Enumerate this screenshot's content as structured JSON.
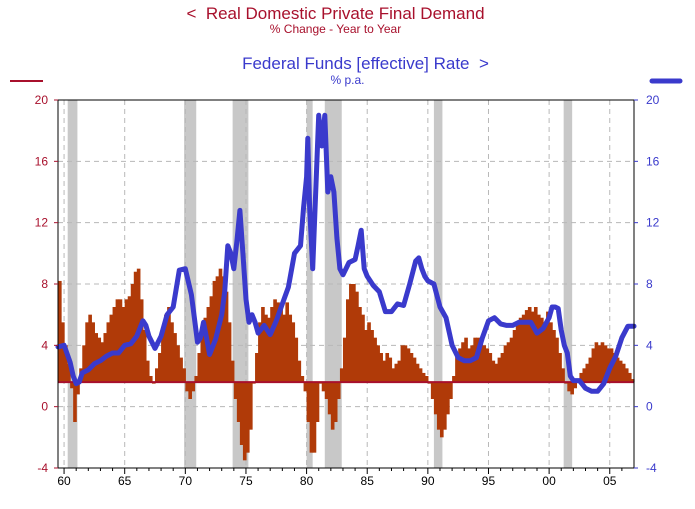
{
  "chart_data": {
    "type": "bar+line",
    "title_left": "<  Real Domestic Private Final Demand",
    "subtitle_left": "% Change - Year to Year",
    "title_right": "Federal Funds [effective] Rate  >",
    "subtitle_right": "% p.a.",
    "colors": {
      "bars": "#b03a08",
      "line": "#3a3acc",
      "left_axis": "#a8102c",
      "right_axis": "#3a3acc",
      "baseline": "#a8102c",
      "recession": "#c8c8c8"
    },
    "ylim_left": [
      -4,
      20
    ],
    "ylim_right": [
      -4,
      20
    ],
    "y_ticks_left": [
      "20",
      "16",
      "12",
      "8",
      "4",
      "0",
      "-4"
    ],
    "y_ticks_right": [
      "20",
      "16",
      "12",
      "8",
      "4",
      "0",
      "-4"
    ],
    "x_ticks": [
      "60",
      "65",
      "70",
      "75",
      "80",
      "85",
      "90",
      "95",
      "00",
      "05"
    ],
    "xlim": [
      1959.5,
      2007.0
    ],
    "bar_baseline": 1.6,
    "recessions": [
      [
        1960.3,
        1961.1
      ],
      [
        1969.9,
        1970.9
      ],
      [
        1973.9,
        1975.2
      ],
      [
        1980.0,
        1980.5
      ],
      [
        1981.5,
        1982.9
      ],
      [
        1990.5,
        1991.2
      ],
      [
        2001.2,
        2001.9
      ]
    ],
    "demand_yoy": [
      [
        1959.5,
        8.2
      ],
      [
        1959.75,
        5.5
      ],
      [
        1960.0,
        4.0
      ],
      [
        1960.25,
        2.8
      ],
      [
        1960.5,
        1.2
      ],
      [
        1960.75,
        -1.0
      ],
      [
        1961.0,
        0.8
      ],
      [
        1961.25,
        2.5
      ],
      [
        1961.5,
        4.0
      ],
      [
        1961.75,
        5.5
      ],
      [
        1962.0,
        6.0
      ],
      [
        1962.25,
        5.5
      ],
      [
        1962.5,
        4.8
      ],
      [
        1962.75,
        4.5
      ],
      [
        1963.0,
        4.2
      ],
      [
        1963.25,
        4.8
      ],
      [
        1963.5,
        5.5
      ],
      [
        1963.75,
        6.0
      ],
      [
        1964.0,
        6.5
      ],
      [
        1964.25,
        7.0
      ],
      [
        1964.5,
        7.0
      ],
      [
        1964.75,
        6.5
      ],
      [
        1965.0,
        7.0
      ],
      [
        1965.25,
        7.2
      ],
      [
        1965.5,
        8.0
      ],
      [
        1965.75,
        8.8
      ],
      [
        1966.0,
        9.0
      ],
      [
        1966.25,
        7.0
      ],
      [
        1966.5,
        5.0
      ],
      [
        1966.75,
        3.0
      ],
      [
        1967.0,
        2.0
      ],
      [
        1967.25,
        1.5
      ],
      [
        1967.5,
        2.5
      ],
      [
        1967.75,
        3.5
      ],
      [
        1968.0,
        5.0
      ],
      [
        1968.25,
        6.0
      ],
      [
        1968.5,
        6.5
      ],
      [
        1968.75,
        5.5
      ],
      [
        1969.0,
        4.8
      ],
      [
        1969.25,
        4.0
      ],
      [
        1969.5,
        3.2
      ],
      [
        1969.75,
        2.5
      ],
      [
        1970.0,
        1.0
      ],
      [
        1970.25,
        0.5
      ],
      [
        1970.5,
        1.0
      ],
      [
        1970.75,
        2.0
      ],
      [
        1971.0,
        3.5
      ],
      [
        1971.25,
        4.8
      ],
      [
        1971.5,
        5.8
      ],
      [
        1971.75,
        6.5
      ],
      [
        1972.0,
        7.2
      ],
      [
        1972.25,
        8.2
      ],
      [
        1972.5,
        8.5
      ],
      [
        1972.75,
        9.0
      ],
      [
        1973.0,
        8.5
      ],
      [
        1973.25,
        7.5
      ],
      [
        1973.5,
        5.5
      ],
      [
        1973.75,
        3.0
      ],
      [
        1974.0,
        0.5
      ],
      [
        1974.25,
        -1.0
      ],
      [
        1974.5,
        -2.5
      ],
      [
        1974.75,
        -3.5
      ],
      [
        1975.0,
        -3.0
      ],
      [
        1975.25,
        -1.5
      ],
      [
        1975.5,
        1.5
      ],
      [
        1975.75,
        3.5
      ],
      [
        1976.0,
        5.5
      ],
      [
        1976.25,
        6.5
      ],
      [
        1976.5,
        6.0
      ],
      [
        1976.75,
        5.8
      ],
      [
        1977.0,
        6.5
      ],
      [
        1977.25,
        7.0
      ],
      [
        1977.5,
        6.8
      ],
      [
        1977.75,
        6.5
      ],
      [
        1978.0,
        6.0
      ],
      [
        1978.25,
        6.8
      ],
      [
        1978.5,
        6.0
      ],
      [
        1978.75,
        5.5
      ],
      [
        1979.0,
        4.5
      ],
      [
        1979.25,
        3.0
      ],
      [
        1979.5,
        2.0
      ],
      [
        1979.75,
        1.0
      ],
      [
        1980.0,
        -1.0
      ],
      [
        1980.25,
        -3.0
      ],
      [
        1980.5,
        -3.0
      ],
      [
        1980.75,
        -1.0
      ],
      [
        1981.0,
        1.5
      ],
      [
        1981.25,
        1.0
      ],
      [
        1981.5,
        0.5
      ],
      [
        1981.75,
        -0.5
      ],
      [
        1982.0,
        -1.5
      ],
      [
        1982.25,
        -1.0
      ],
      [
        1982.5,
        0.5
      ],
      [
        1982.75,
        2.5
      ],
      [
        1983.0,
        4.5
      ],
      [
        1983.25,
        7.0
      ],
      [
        1983.5,
        8.0
      ],
      [
        1983.75,
        8.0
      ],
      [
        1984.0,
        7.5
      ],
      [
        1984.25,
        6.5
      ],
      [
        1984.5,
        6.0
      ],
      [
        1984.75,
        5.0
      ],
      [
        1985.0,
        5.5
      ],
      [
        1985.25,
        5.0
      ],
      [
        1985.5,
        4.5
      ],
      [
        1985.75,
        4.0
      ],
      [
        1986.0,
        3.5
      ],
      [
        1986.25,
        3.0
      ],
      [
        1986.5,
        3.5
      ],
      [
        1986.75,
        3.2
      ],
      [
        1987.0,
        2.5
      ],
      [
        1987.25,
        2.8
      ],
      [
        1987.5,
        3.0
      ],
      [
        1987.75,
        4.0
      ],
      [
        1988.0,
        4.0
      ],
      [
        1988.25,
        3.8
      ],
      [
        1988.5,
        3.5
      ],
      [
        1988.75,
        3.2
      ],
      [
        1989.0,
        2.8
      ],
      [
        1989.25,
        2.5
      ],
      [
        1989.5,
        2.2
      ],
      [
        1989.75,
        2.0
      ],
      [
        1990.0,
        1.5
      ],
      [
        1990.25,
        0.5
      ],
      [
        1990.5,
        -0.5
      ],
      [
        1990.75,
        -1.5
      ],
      [
        1991.0,
        -2.0
      ],
      [
        1991.25,
        -1.5
      ],
      [
        1991.5,
        -0.5
      ],
      [
        1991.75,
        0.5
      ],
      [
        1992.0,
        2.0
      ],
      [
        1992.25,
        3.5
      ],
      [
        1992.5,
        3.8
      ],
      [
        1992.75,
        4.2
      ],
      [
        1993.0,
        4.5
      ],
      [
        1993.25,
        3.8
      ],
      [
        1993.5,
        4.0
      ],
      [
        1993.75,
        4.5
      ],
      [
        1994.0,
        4.5
      ],
      [
        1994.25,
        4.2
      ],
      [
        1994.5,
        4.0
      ],
      [
        1994.75,
        3.8
      ],
      [
        1995.0,
        3.5
      ],
      [
        1995.25,
        3.0
      ],
      [
        1995.5,
        2.8
      ],
      [
        1995.75,
        3.2
      ],
      [
        1996.0,
        3.5
      ],
      [
        1996.25,
        4.0
      ],
      [
        1996.5,
        4.2
      ],
      [
        1996.75,
        4.5
      ],
      [
        1997.0,
        5.0
      ],
      [
        1997.25,
        5.5
      ],
      [
        1997.5,
        5.8
      ],
      [
        1997.75,
        6.0
      ],
      [
        1998.0,
        6.3
      ],
      [
        1998.25,
        6.5
      ],
      [
        1998.5,
        6.2
      ],
      [
        1998.75,
        6.5
      ],
      [
        1999.0,
        6.0
      ],
      [
        1999.25,
        5.8
      ],
      [
        1999.5,
        5.5
      ],
      [
        1999.75,
        6.2
      ],
      [
        2000.0,
        5.5
      ],
      [
        2000.25,
        5.0
      ],
      [
        2000.5,
        4.5
      ],
      [
        2000.75,
        3.5
      ],
      [
        2001.0,
        2.5
      ],
      [
        2001.25,
        1.5
      ],
      [
        2001.5,
        1.0
      ],
      [
        2001.75,
        0.8
      ],
      [
        2002.0,
        1.2
      ],
      [
        2002.25,
        1.8
      ],
      [
        2002.5,
        2.2
      ],
      [
        2002.75,
        2.5
      ],
      [
        2003.0,
        2.8
      ],
      [
        2003.25,
        3.2
      ],
      [
        2003.5,
        3.8
      ],
      [
        2003.75,
        4.2
      ],
      [
        2004.0,
        4.0
      ],
      [
        2004.25,
        4.2
      ],
      [
        2004.5,
        4.0
      ],
      [
        2004.75,
        3.8
      ],
      [
        2005.0,
        3.8
      ],
      [
        2005.25,
        3.5
      ],
      [
        2005.5,
        3.2
      ],
      [
        2005.75,
        3.0
      ],
      [
        2006.0,
        2.8
      ],
      [
        2006.25,
        2.5
      ],
      [
        2006.5,
        2.2
      ],
      [
        2006.75,
        1.8
      ]
    ],
    "fed_funds": [
      [
        1959.5,
        3.9
      ],
      [
        1960.0,
        4.0
      ],
      [
        1960.5,
        2.9
      ],
      [
        1960.75,
        2.0
      ],
      [
        1961.0,
        1.5
      ],
      [
        1961.25,
        1.6
      ],
      [
        1961.5,
        2.2
      ],
      [
        1962.0,
        2.4
      ],
      [
        1962.5,
        2.8
      ],
      [
        1963.0,
        3.0
      ],
      [
        1963.5,
        3.3
      ],
      [
        1964.0,
        3.5
      ],
      [
        1964.5,
        3.5
      ],
      [
        1965.0,
        4.0
      ],
      [
        1965.5,
        4.1
      ],
      [
        1966.0,
        4.6
      ],
      [
        1966.5,
        5.6
      ],
      [
        1966.75,
        5.3
      ],
      [
        1967.0,
        4.6
      ],
      [
        1967.5,
        3.8
      ],
      [
        1968.0,
        4.6
      ],
      [
        1968.5,
        6.0
      ],
      [
        1969.0,
        6.5
      ],
      [
        1969.5,
        8.9
      ],
      [
        1970.0,
        9.0
      ],
      [
        1970.5,
        7.3
      ],
      [
        1971.0,
        4.2
      ],
      [
        1971.25,
        4.5
      ],
      [
        1971.5,
        5.5
      ],
      [
        1971.75,
        4.5
      ],
      [
        1972.0,
        3.4
      ],
      [
        1972.5,
        4.4
      ],
      [
        1973.0,
        6.0
      ],
      [
        1973.25,
        7.5
      ],
      [
        1973.5,
        10.5
      ],
      [
        1973.75,
        10.0
      ],
      [
        1974.0,
        9.0
      ],
      [
        1974.25,
        10.8
      ],
      [
        1974.5,
        12.8
      ],
      [
        1974.75,
        10.0
      ],
      [
        1975.0,
        7.0
      ],
      [
        1975.25,
        5.5
      ],
      [
        1975.5,
        6.0
      ],
      [
        1975.75,
        5.5
      ],
      [
        1976.0,
        4.8
      ],
      [
        1976.5,
        5.3
      ],
      [
        1977.0,
        4.7
      ],
      [
        1977.5,
        5.6
      ],
      [
        1978.0,
        6.7
      ],
      [
        1978.5,
        7.8
      ],
      [
        1979.0,
        10.0
      ],
      [
        1979.5,
        10.5
      ],
      [
        1979.75,
        13.0
      ],
      [
        1980.0,
        15.0
      ],
      [
        1980.1,
        17.5
      ],
      [
        1980.25,
        13.0
      ],
      [
        1980.5,
        9.0
      ],
      [
        1980.75,
        14.0
      ],
      [
        1981.0,
        19.0
      ],
      [
        1981.25,
        17.0
      ],
      [
        1981.5,
        19.0
      ],
      [
        1981.75,
        14.0
      ],
      [
        1982.0,
        15.0
      ],
      [
        1982.25,
        14.0
      ],
      [
        1982.5,
        11.0
      ],
      [
        1982.75,
        9.0
      ],
      [
        1983.0,
        8.6
      ],
      [
        1983.5,
        9.4
      ],
      [
        1984.0,
        9.6
      ],
      [
        1984.25,
        10.5
      ],
      [
        1984.5,
        11.5
      ],
      [
        1984.75,
        9.0
      ],
      [
        1985.0,
        8.5
      ],
      [
        1985.5,
        7.9
      ],
      [
        1986.0,
        7.5
      ],
      [
        1986.5,
        6.2
      ],
      [
        1987.0,
        6.2
      ],
      [
        1987.5,
        6.7
      ],
      [
        1988.0,
        6.6
      ],
      [
        1988.5,
        8.0
      ],
      [
        1989.0,
        9.5
      ],
      [
        1989.25,
        9.7
      ],
      [
        1989.5,
        9.0
      ],
      [
        1989.75,
        8.5
      ],
      [
        1990.0,
        8.2
      ],
      [
        1990.5,
        8.0
      ],
      [
        1991.0,
        6.5
      ],
      [
        1991.5,
        5.8
      ],
      [
        1992.0,
        4.0
      ],
      [
        1992.5,
        3.2
      ],
      [
        1993.0,
        3.0
      ],
      [
        1993.5,
        3.0
      ],
      [
        1994.0,
        3.2
      ],
      [
        1994.5,
        4.5
      ],
      [
        1995.0,
        5.6
      ],
      [
        1995.5,
        5.8
      ],
      [
        1996.0,
        5.4
      ],
      [
        1996.5,
        5.3
      ],
      [
        1997.0,
        5.3
      ],
      [
        1997.5,
        5.5
      ],
      [
        1998.0,
        5.5
      ],
      [
        1998.5,
        5.5
      ],
      [
        1999.0,
        4.8
      ],
      [
        1999.5,
        5.1
      ],
      [
        2000.0,
        5.8
      ],
      [
        2000.25,
        6.5
      ],
      [
        2000.5,
        6.5
      ],
      [
        2000.75,
        6.4
      ],
      [
        2001.0,
        5.0
      ],
      [
        2001.25,
        4.0
      ],
      [
        2001.5,
        3.5
      ],
      [
        2001.75,
        2.0
      ],
      [
        2002.0,
        1.7
      ],
      [
        2002.5,
        1.7
      ],
      [
        2003.0,
        1.2
      ],
      [
        2003.5,
        1.0
      ],
      [
        2004.0,
        1.0
      ],
      [
        2004.5,
        1.5
      ],
      [
        2005.0,
        2.5
      ],
      [
        2005.5,
        3.3
      ],
      [
        2006.0,
        4.5
      ],
      [
        2006.5,
        5.25
      ],
      [
        2007.0,
        5.25
      ]
    ]
  }
}
